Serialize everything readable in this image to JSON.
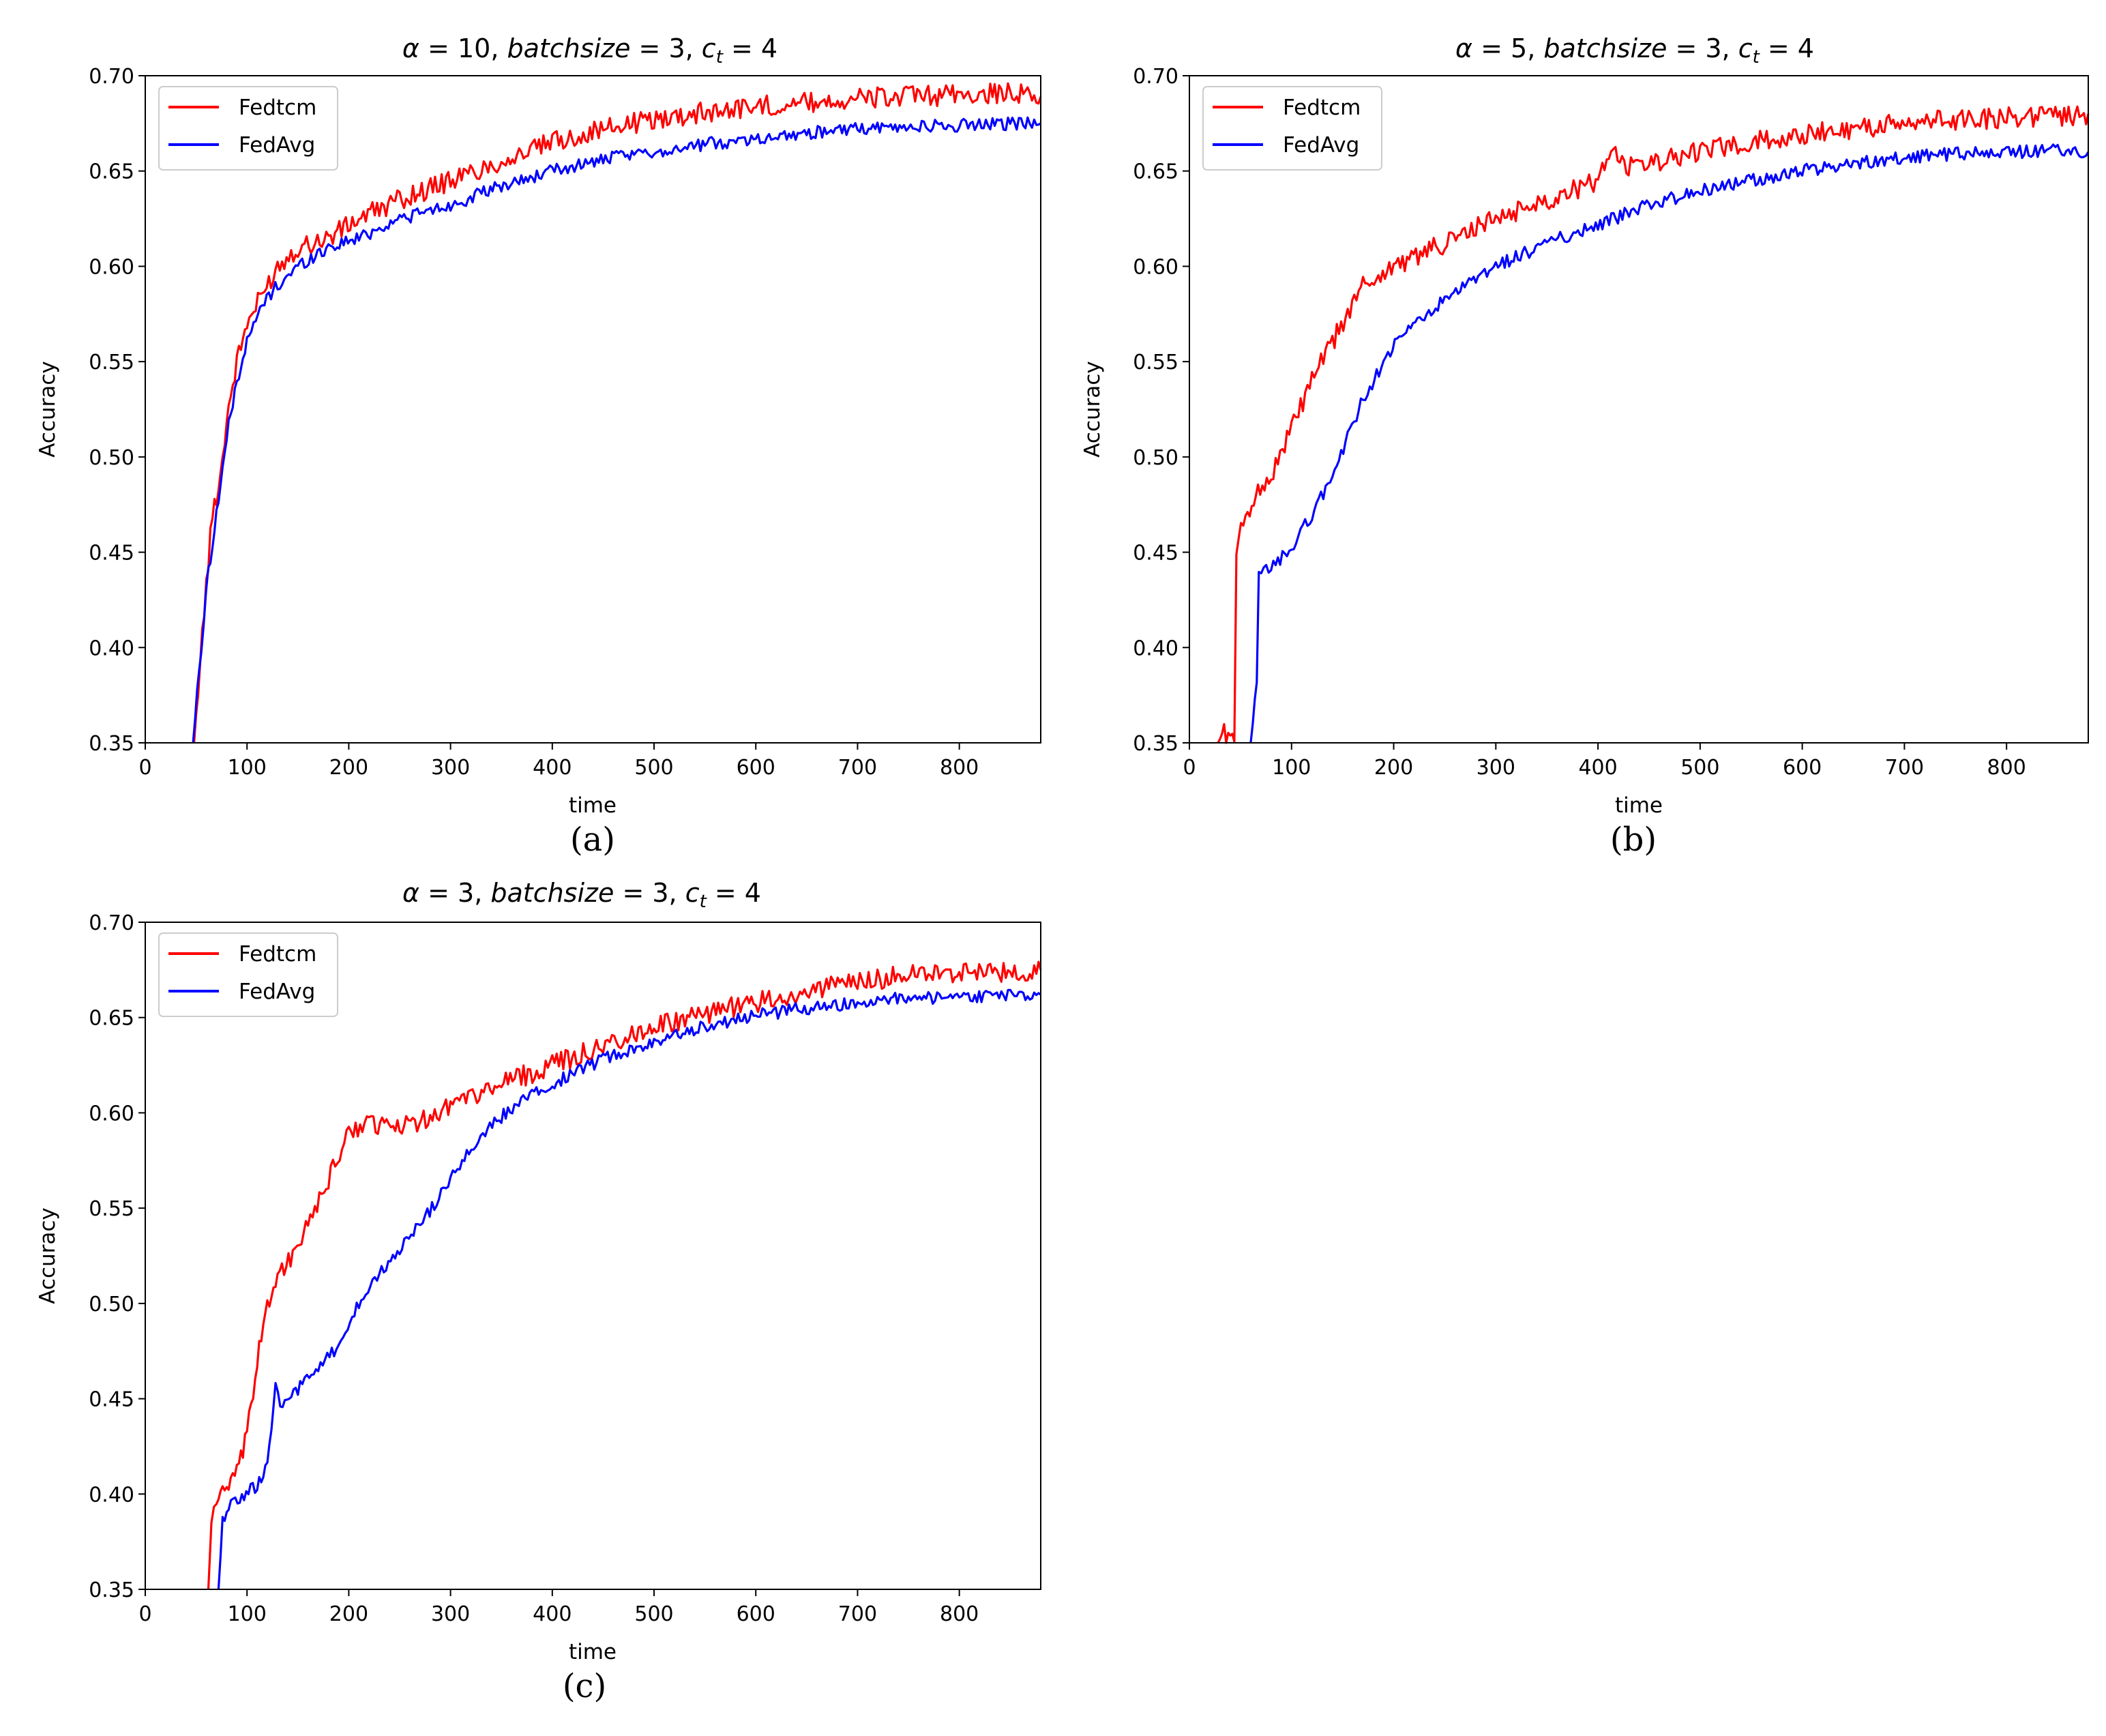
{
  "chart_data": [
    {
      "type": "line",
      "caption": "(a)",
      "title_parts": [
        "α",
        " = 10, ",
        "batchsize",
        " = 3, ",
        "c",
        "t",
        " = 4"
      ],
      "xlabel": "time",
      "ylabel": "Accuracy",
      "xlim": [
        0,
        880
      ],
      "ylim": [
        0.35,
        0.7
      ],
      "x_ticks": [
        0,
        100,
        200,
        300,
        400,
        500,
        600,
        700,
        800
      ],
      "y_ticks": [
        "0.35",
        "0.40",
        "0.45",
        "0.50",
        "0.55",
        "0.60",
        "0.65",
        "0.70"
      ],
      "legend": "top-left",
      "series": [
        {
          "name": "Fedtcm",
          "color": "#ff0000",
          "points": [
            [
              48,
              0.35
            ],
            [
              52,
              0.38
            ],
            [
              58,
              0.42
            ],
            [
              66,
              0.47
            ],
            [
              74,
              0.49
            ],
            [
              80,
              0.52
            ],
            [
              90,
              0.55
            ],
            [
              100,
              0.57
            ],
            [
              115,
              0.585
            ],
            [
              130,
              0.6
            ],
            [
              150,
              0.61
            ],
            [
              180,
              0.615
            ],
            [
              210,
              0.625
            ],
            [
              250,
              0.635
            ],
            [
              300,
              0.645
            ],
            [
              350,
              0.655
            ],
            [
              400,
              0.665
            ],
            [
              450,
              0.672
            ],
            [
              500,
              0.677
            ],
            [
              550,
              0.681
            ],
            [
              600,
              0.684
            ],
            [
              650,
              0.686
            ],
            [
              700,
              0.688
            ],
            [
              750,
              0.689
            ],
            [
              800,
              0.69
            ],
            [
              850,
              0.691
            ],
            [
              880,
              0.689
            ]
          ]
        },
        {
          "name": "FedAvg",
          "color": "#0000ff",
          "points": [
            [
              47,
              0.35
            ],
            [
              55,
              0.4
            ],
            [
              62,
              0.44
            ],
            [
              70,
              0.47
            ],
            [
              80,
              0.51
            ],
            [
              90,
              0.54
            ],
            [
              100,
              0.56
            ],
            [
              115,
              0.58
            ],
            [
              130,
              0.59
            ],
            [
              150,
              0.6
            ],
            [
              180,
              0.61
            ],
            [
              210,
              0.615
            ],
            [
              250,
              0.625
            ],
            [
              300,
              0.632
            ],
            [
              350,
              0.642
            ],
            [
              400,
              0.65
            ],
            [
              450,
              0.656
            ],
            [
              500,
              0.66
            ],
            [
              550,
              0.664
            ],
            [
              600,
              0.667
            ],
            [
              650,
              0.67
            ],
            [
              700,
              0.672
            ],
            [
              750,
              0.673
            ],
            [
              800,
              0.674
            ],
            [
              850,
              0.675
            ],
            [
              880,
              0.675
            ]
          ]
        }
      ]
    },
    {
      "type": "line",
      "caption": "(b)",
      "title_parts": [
        "α",
        " = 5, ",
        "batchsize",
        " = 3, ",
        "c",
        "t",
        " = 4"
      ],
      "xlabel": "time",
      "ylabel": "Accuracy",
      "xlim": [
        0,
        880
      ],
      "ylim": [
        0.35,
        0.7
      ],
      "x_ticks": [
        0,
        100,
        200,
        300,
        400,
        500,
        600,
        700,
        800
      ],
      "y_ticks": [
        "0.35",
        "0.40",
        "0.45",
        "0.50",
        "0.55",
        "0.60",
        "0.65",
        "0.70"
      ],
      "legend": "top-left",
      "series": [
        {
          "name": "Fedtcm",
          "color": "#ff0000",
          "points": [
            [
              28,
              0.35
            ],
            [
              34,
              0.356
            ],
            [
              40,
              0.352
            ],
            [
              44,
              0.35
            ],
            [
              46,
              0.45
            ],
            [
              55,
              0.47
            ],
            [
              65,
              0.48
            ],
            [
              80,
              0.49
            ],
            [
              100,
              0.515
            ],
            [
              120,
              0.54
            ],
            [
              140,
              0.56
            ],
            [
              155,
              0.575
            ],
            [
              170,
              0.59
            ],
            [
              200,
              0.6
            ],
            [
              250,
              0.612
            ],
            [
              300,
              0.625
            ],
            [
              350,
              0.635
            ],
            [
              400,
              0.645
            ],
            [
              415,
              0.662
            ],
            [
              430,
              0.652
            ],
            [
              450,
              0.654
            ],
            [
              500,
              0.66
            ],
            [
              550,
              0.665
            ],
            [
              600,
              0.669
            ],
            [
              650,
              0.672
            ],
            [
              700,
              0.675
            ],
            [
              750,
              0.677
            ],
            [
              800,
              0.678
            ],
            [
              850,
              0.679
            ],
            [
              880,
              0.68
            ]
          ]
        },
        {
          "name": "FedAvg",
          "color": "#0000ff",
          "points": [
            [
              60,
              0.35
            ],
            [
              66,
              0.38
            ],
            [
              68,
              0.438
            ],
            [
              80,
              0.442
            ],
            [
              100,
              0.452
            ],
            [
              120,
              0.47
            ],
            [
              140,
              0.49
            ],
            [
              155,
              0.51
            ],
            [
              170,
              0.53
            ],
            [
              190,
              0.55
            ],
            [
              210,
              0.565
            ],
            [
              250,
              0.582
            ],
            [
              300,
              0.6
            ],
            [
              350,
              0.612
            ],
            [
              400,
              0.622
            ],
            [
              450,
              0.632
            ],
            [
              500,
              0.64
            ],
            [
              550,
              0.645
            ],
            [
              600,
              0.65
            ],
            [
              650,
              0.654
            ],
            [
              700,
              0.657
            ],
            [
              750,
              0.659
            ],
            [
              800,
              0.66
            ],
            [
              850,
              0.661
            ],
            [
              880,
              0.66
            ]
          ]
        }
      ]
    },
    {
      "type": "line",
      "caption": "(c)",
      "title_parts": [
        "α",
        " = 3, ",
        "batchsize",
        " = 3, ",
        "c",
        "t",
        " = 4"
      ],
      "xlabel": "time",
      "ylabel": "Accuracy",
      "xlim": [
        0,
        880
      ],
      "ylim": [
        0.35,
        0.7
      ],
      "x_ticks": [
        0,
        100,
        200,
        300,
        400,
        500,
        600,
        700,
        800
      ],
      "y_ticks": [
        "0.35",
        "0.40",
        "0.45",
        "0.50",
        "0.55",
        "0.60",
        "0.65",
        "0.70"
      ],
      "legend": "top-left",
      "series": [
        {
          "name": "Fedtcm",
          "color": "#ff0000",
          "points": [
            [
              62,
              0.35
            ],
            [
              65,
              0.385
            ],
            [
              70,
              0.398
            ],
            [
              80,
              0.402
            ],
            [
              90,
              0.41
            ],
            [
              100,
              0.43
            ],
            [
              110,
              0.47
            ],
            [
              120,
              0.5
            ],
            [
              130,
              0.515
            ],
            [
              145,
              0.525
            ],
            [
              160,
              0.54
            ],
            [
              180,
              0.565
            ],
            [
              200,
              0.59
            ],
            [
              220,
              0.595
            ],
            [
              250,
              0.592
            ],
            [
              280,
              0.598
            ],
            [
              300,
              0.605
            ],
            [
              350,
              0.615
            ],
            [
              400,
              0.625
            ],
            [
              450,
              0.635
            ],
            [
              500,
              0.645
            ],
            [
              550,
              0.652
            ],
            [
              600,
              0.658
            ],
            [
              650,
              0.664
            ],
            [
              700,
              0.669
            ],
            [
              750,
              0.672
            ],
            [
              800,
              0.673
            ],
            [
              850,
              0.674
            ],
            [
              880,
              0.675
            ]
          ]
        },
        {
          "name": "FedAvg",
          "color": "#0000ff",
          "points": [
            [
              72,
              0.35
            ],
            [
              76,
              0.385
            ],
            [
              82,
              0.395
            ],
            [
              95,
              0.398
            ],
            [
              110,
              0.405
            ],
            [
              120,
              0.415
            ],
            [
              128,
              0.455
            ],
            [
              135,
              0.445
            ],
            [
              150,
              0.455
            ],
            [
              170,
              0.465
            ],
            [
              190,
              0.478
            ],
            [
              210,
              0.5
            ],
            [
              230,
              0.515
            ],
            [
              250,
              0.528
            ],
            [
              275,
              0.545
            ],
            [
              300,
              0.565
            ],
            [
              325,
              0.585
            ],
            [
              350,
              0.598
            ],
            [
              380,
              0.61
            ],
            [
              400,
              0.615
            ],
            [
              450,
              0.628
            ],
            [
              500,
              0.638
            ],
            [
              550,
              0.645
            ],
            [
              600,
              0.651
            ],
            [
              650,
              0.655
            ],
            [
              700,
              0.658
            ],
            [
              750,
              0.66
            ],
            [
              800,
              0.661
            ],
            [
              850,
              0.662
            ],
            [
              880,
              0.662
            ]
          ]
        }
      ]
    }
  ]
}
